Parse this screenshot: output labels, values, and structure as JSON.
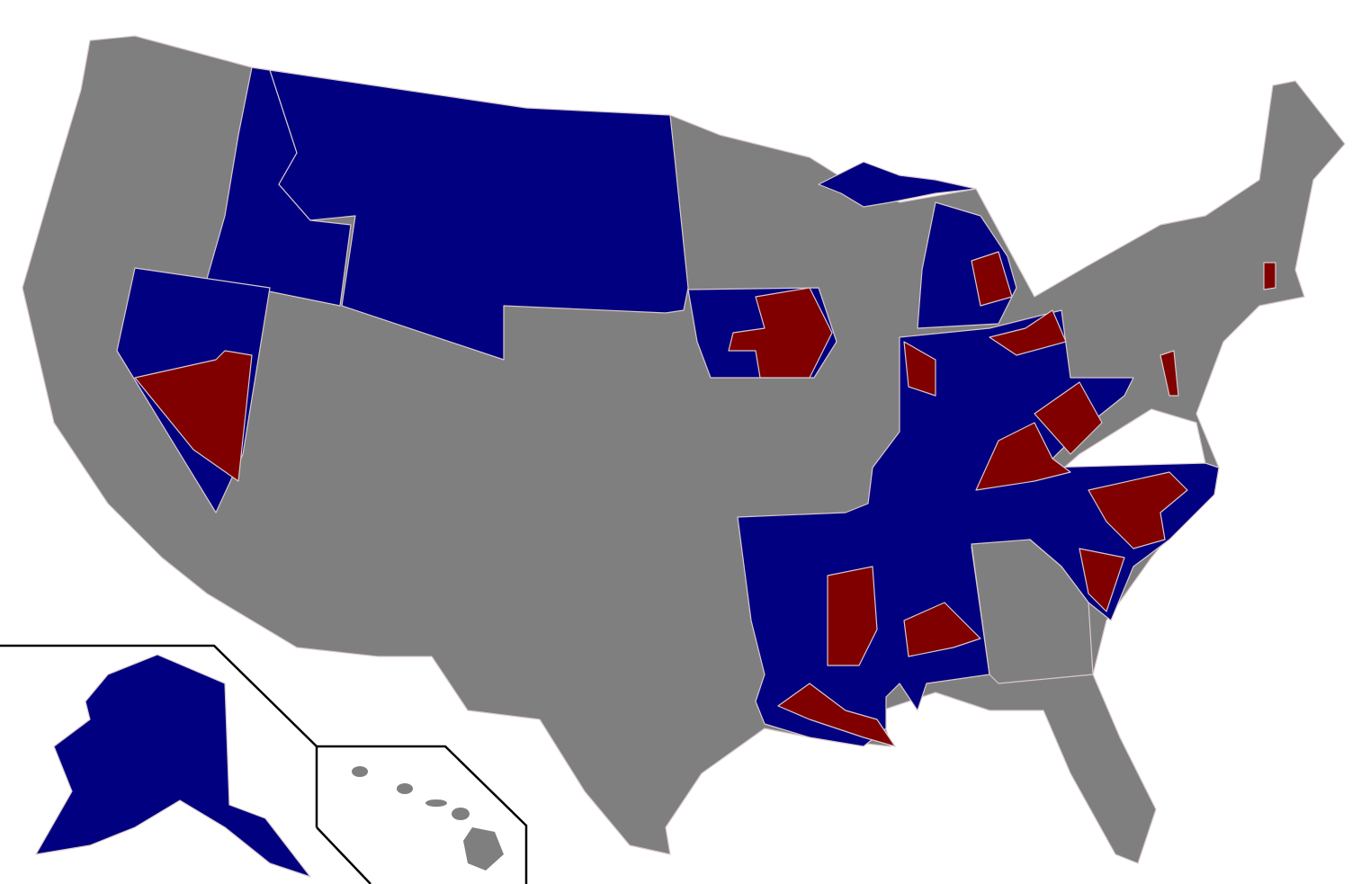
{
  "map": {
    "colors": {
      "background": "#ffffff",
      "no_data": "#7f7f7f",
      "blue_category": "#000080",
      "red_category": "#800000",
      "uncolored": "#ffffff",
      "borders": "#d8c8cc",
      "inset_frame": "#000000"
    }
  }
}
